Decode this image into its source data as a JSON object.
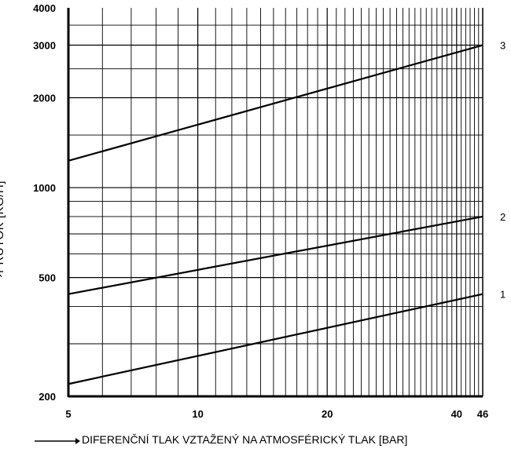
{
  "chart_data": {
    "type": "line",
    "xscale": "log",
    "yscale": "log",
    "xlim": [
      5,
      46
    ],
    "ylim": [
      200,
      4000
    ],
    "xticks": [
      "5",
      "10",
      "20",
      "40",
      "46"
    ],
    "yticks": [
      "200",
      "500",
      "1000",
      "2000",
      "3000",
      "4000"
    ],
    "xlabel": "DIFERENČNÍ TLAK VZTAŽENÝ NA ATMOSFÉRICKÝ TLAK [BAR]",
    "ylabel": "PRŮTOK [KG/H]",
    "grid": true,
    "series": [
      {
        "name": "1",
        "x": [
          5,
          46
        ],
        "y": [
          220,
          440
        ]
      },
      {
        "name": "2",
        "x": [
          5,
          46
        ],
        "y": [
          440,
          800
        ]
      },
      {
        "name": "3",
        "x": [
          5,
          46
        ],
        "y": [
          1230,
          3000
        ]
      }
    ]
  }
}
